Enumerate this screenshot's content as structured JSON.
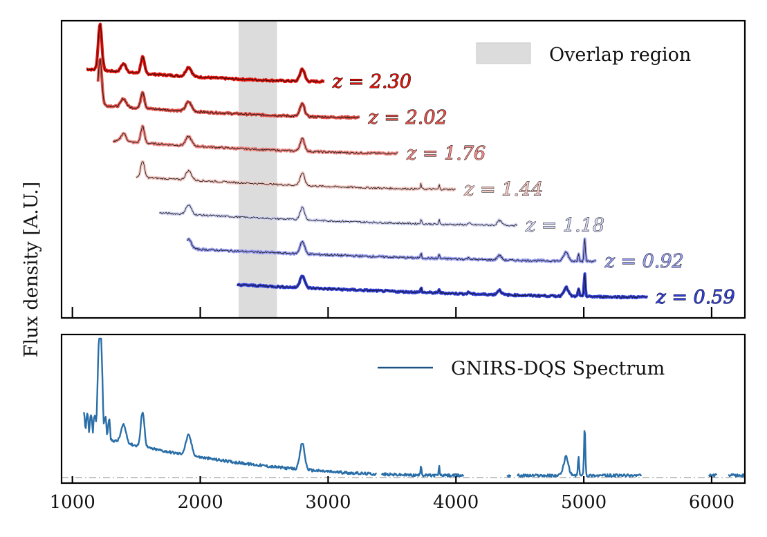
{
  "chart_data": [
    {
      "type": "line",
      "panel": "top",
      "title": "",
      "ylabel": "Flux density [A.U.]",
      "xlim": [
        915,
        6260
      ],
      "x_ticks": [
        1000,
        2000,
        3000,
        4000,
        5000,
        6000
      ],
      "overlap_region": {
        "x0": 2300,
        "x1": 2600,
        "label": "Overlap region",
        "color": "#d9d9d9"
      },
      "legend_placement": "top-right",
      "series": [
        {
          "name": "z = 2.30",
          "z": 2.3,
          "x_start": 1110,
          "x_end": 2970,
          "color": "#e3120b"
        },
        {
          "name": "z = 2.02",
          "z": 2.02,
          "x_start": 1200,
          "x_end": 3250,
          "color": "#e0524a"
        },
        {
          "name": "z = 1.76",
          "z": 1.76,
          "x_start": 1320,
          "x_end": 3550,
          "color": "#f08a85"
        },
        {
          "name": "z = 1.44",
          "z": 1.44,
          "x_start": 1500,
          "x_end": 4000,
          "color": "#f3c9c4"
        },
        {
          "name": "z = 1.18",
          "z": 1.18,
          "x_start": 1680,
          "x_end": 4480,
          "color": "#d4d6f5"
        },
        {
          "name": "z = 0.92",
          "z": 0.92,
          "x_start": 1900,
          "x_end": 5100,
          "color": "#9a9ff2"
        },
        {
          "name": "z = 0.59",
          "z": 0.59,
          "x_start": 2290,
          "x_end": 5500,
          "color": "#3340d8"
        }
      ],
      "emission_lines": [
        1216,
        1400,
        1549,
        1909,
        2798,
        3727,
        3869,
        4102,
        4340,
        4861,
        4959,
        5007
      ]
    },
    {
      "type": "line",
      "panel": "bottom",
      "xlabel": "",
      "xlim": [
        915,
        6260
      ],
      "x_ticks": [
        1000,
        2000,
        3000,
        4000,
        5000,
        6000
      ],
      "legend": "GNIRS-DQS Spectrum",
      "legend_placement": "top-right",
      "color": "#2a6ea8",
      "zero_line": true,
      "segments": [
        [
          1090,
          3380
        ],
        [
          3420,
          4060
        ],
        [
          4400,
          4430
        ],
        [
          4480,
          5450
        ],
        [
          5980,
          6040
        ],
        [
          6130,
          6260
        ]
      ]
    }
  ]
}
